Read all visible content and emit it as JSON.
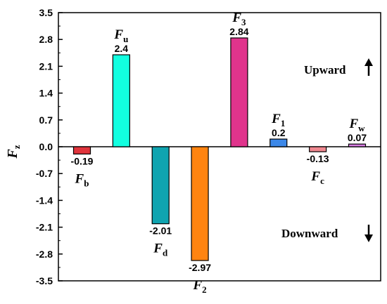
{
  "chart_data": {
    "type": "bar",
    "ylabel": "F",
    "ylabel_sub": "z",
    "ylim": [
      -3.5,
      3.5
    ],
    "yticks": [
      "3.5",
      "2.8",
      "2.1",
      "1.4",
      "0.7",
      "0.0",
      "-0.7",
      "-1.4",
      "-2.1",
      "-2.8",
      "-3.5"
    ],
    "grid": false,
    "bars": [
      {
        "name": "F",
        "sub": "b",
        "value": -0.19,
        "label": "-0.19",
        "color": "#e0343c"
      },
      {
        "name": "F",
        "sub": "u",
        "value": 2.4,
        "label": "2.4",
        "color": "#12ffe0"
      },
      {
        "name": "F",
        "sub": "d",
        "value": -2.01,
        "label": "-2.01",
        "color": "#10a4b0"
      },
      {
        "name": "F",
        "sub": "2",
        "value": -2.97,
        "label": "-2.97",
        "color": "#ff8410"
      },
      {
        "name": "F",
        "sub": "3",
        "value": 2.84,
        "label": "2.84",
        "color": "#e0348c"
      },
      {
        "name": "F",
        "sub": "1",
        "value": 0.2,
        "label": "0.2",
        "color": "#3c88e8"
      },
      {
        "name": "F",
        "sub": "c",
        "value": -0.13,
        "label": "-0.13",
        "color": "#f08890"
      },
      {
        "name": "F",
        "sub": "w",
        "value": 0.07,
        "label": "0.07",
        "color": "#d87ce4"
      }
    ],
    "annotations": {
      "upward": "Upward",
      "downward": "Downward"
    }
  }
}
